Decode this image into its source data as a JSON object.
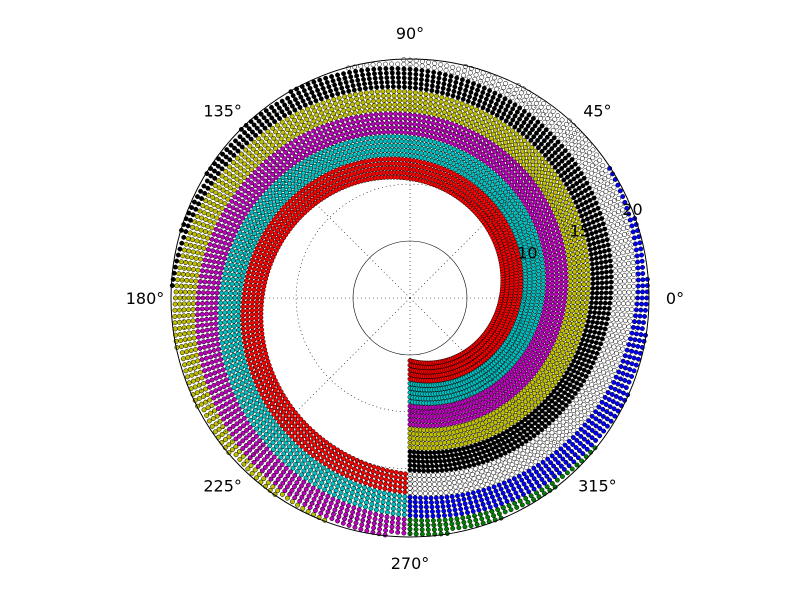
{
  "chart_data": {
    "type": "scatter",
    "projection": "polar",
    "theta_ticks_deg": [
      0,
      45,
      90,
      135,
      180,
      225,
      270,
      315
    ],
    "theta_tick_labels": [
      "0°",
      "45°",
      "90°",
      "135°",
      "180°",
      "225°",
      "270°",
      "315°"
    ],
    "r_ticks": [
      10,
      15,
      20
    ],
    "r_tick_labels": [
      "10",
      "15",
      "20"
    ],
    "rlim": [
      5,
      21
    ],
    "grid": true,
    "legend": "none",
    "marker": "circle",
    "band_width_r": 2,
    "spiral_rise_r_per_revolution": 10,
    "color_cycle": [
      "#0000ff",
      "#008000",
      "#ff0000",
      "#00bfbf",
      "#bf00bf",
      "#bfbf00",
      "#000000",
      "#ffffff"
    ],
    "bands": [
      {
        "color": "#ff0000",
        "r_start": 5.5
      },
      {
        "color": "#00bfbf",
        "r_start": 7.5
      },
      {
        "color": "#bf00bf",
        "r_start": 9.5
      },
      {
        "color": "#bfbf00",
        "r_start": 11.5
      },
      {
        "color": "#000000",
        "r_start": 13.5
      },
      {
        "color": "#ffffff",
        "r_start": 15.5
      },
      {
        "color": "#0000ff",
        "r_start": 17.5
      },
      {
        "color": "#008000",
        "r_start": 19.5
      }
    ],
    "theta_range_deg": [
      -90,
      270
    ]
  }
}
